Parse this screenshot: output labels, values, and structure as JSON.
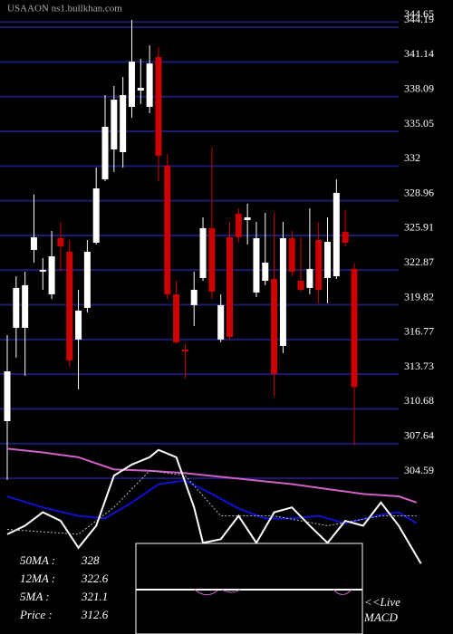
{
  "chart_data": [
    {
      "type": "candlestick",
      "title": "USAAON ns1.bullkhan.com",
      "up_color": "#ffffff",
      "down_color": "#cc0000",
      "grid_color": "#1c1c6e",
      "ylim": [
        290.92,
        346.58
      ],
      "yticks": [
        304.59,
        307.64,
        310.68,
        313.73,
        316.77,
        319.82,
        322.87,
        325.91,
        328.96,
        332,
        335.05,
        338.09,
        341.14,
        344.19,
        344.65
      ],
      "open": [
        309.61,
        317.8,
        317.8,
        324.64,
        322.73,
        320.74,
        325.67,
        324.48,
        316.77,
        319.55,
        325.27,
        330.84,
        333.46,
        333.22,
        337.2,
        338.63,
        337.2,
        341.57,
        332.03,
        320.74,
        315.89,
        319.79,
        322.17,
        326.55,
        316.77,
        325.75,
        327.82,
        327.26,
        320.9,
        321.93,
        322.09,
        316.21,
        325.67,
        321.93,
        321.3,
        325.51,
        322.17,
        322.33,
        326.23,
        322.97
      ],
      "high": [
        317.16,
        322.33,
        322.73,
        329.49,
        323.92,
        326.31,
        327.1,
        325.51,
        321.14,
        325.51,
        331.87,
        338.23,
        339.03,
        339.82,
        344.83,
        341.41,
        342.6,
        342.45,
        333.06,
        321.93,
        316.37,
        322.73,
        327.5,
        333.62,
        320.74,
        327.1,
        328.29,
        328.69,
        327.1,
        327.9,
        327.9,
        327.1,
        326.31,
        325.75,
        328.29,
        327.1,
        327.5,
        330.84,
        328.14,
        323.52
      ],
      "low": [
        304.44,
        315.18,
        313.59,
        323.52,
        321.14,
        320.34,
        322.73,
        314.38,
        312.39,
        319.15,
        325.11,
        330.68,
        331.47,
        331.87,
        336.24,
        337.44,
        336.64,
        330.68,
        320.34,
        316.37,
        313.35,
        317.96,
        321.93,
        320.34,
        316.53,
        316.77,
        325.27,
        325.11,
        320.5,
        321.54,
        311.76,
        315.57,
        322.33,
        320.98,
        320.74,
        319.95,
        319.95,
        322.09,
        324.96,
        307.47
      ],
      "close": [
        313.98,
        321.3,
        321.54,
        325.75,
        322.89,
        324.08,
        324.96,
        314.94,
        319.31,
        324.48,
        330.04,
        335.45,
        337.83,
        338.23,
        341.17,
        338.87,
        341.01,
        332.91,
        320.74,
        316.53,
        315.73,
        321.14,
        326.55,
        320.98,
        319.79,
        317.01,
        325.75,
        327.5,
        325.67,
        323.52,
        313.75,
        325.67,
        322.73,
        321.14,
        322.97,
        321.14,
        325.35,
        329.65,
        325.27,
        312.6
      ]
    },
    {
      "type": "line",
      "ylim": [
        0,
        100
      ],
      "series": [
        {
          "color": "#d060c8",
          "x": [
            0,
            4,
            8,
            12,
            16,
            20,
            24,
            28,
            32,
            36,
            40,
            44,
            46
          ],
          "values": [
            96,
            93,
            89,
            79,
            78,
            76,
            73,
            70,
            67,
            63,
            59,
            57,
            52
          ]
        },
        {
          "color": "#1010d0",
          "x": [
            0,
            4,
            8,
            11,
            14,
            17,
            20,
            23,
            26,
            29,
            32,
            35,
            38,
            42,
            44,
            46
          ],
          "values": [
            57,
            48,
            41,
            39,
            52,
            67,
            70,
            59,
            47,
            39,
            39,
            41,
            35,
            42,
            44,
            35
          ]
        },
        {
          "color": "#ffffff",
          "x": [
            0,
            2,
            4,
            6,
            8,
            10,
            12,
            14,
            16,
            17,
            19,
            21,
            22,
            24,
            26,
            28,
            30,
            32,
            34,
            36,
            38,
            40,
            42,
            44,
            46.5
          ],
          "values": [
            26,
            33,
            44,
            37,
            15,
            33,
            74,
            83,
            89,
            95,
            89,
            48,
            19,
            22,
            41,
            19,
            44,
            48,
            33,
            19,
            37,
            33,
            52,
            33,
            2
          ]
        },
        {
          "color": "#bbbbbb",
          "dashed": true,
          "x": [
            0,
            8,
            12,
            16,
            20,
            24,
            30,
            36,
            42,
            46
          ],
          "values": [
            30,
            26,
            48,
            78,
            74,
            41,
            41,
            33,
            41,
            41
          ]
        }
      ],
      "legend": [
        {
          "label": "50MA  :",
          "value": "328"
        },
        {
          "label": "12MA  :",
          "value": "322.6"
        },
        {
          "label": "5MA   :",
          "value": "321.1"
        },
        {
          "label": "Price   :",
          "value": "312.6"
        }
      ],
      "annotation": [
        "<<Live",
        "MACD"
      ]
    }
  ]
}
